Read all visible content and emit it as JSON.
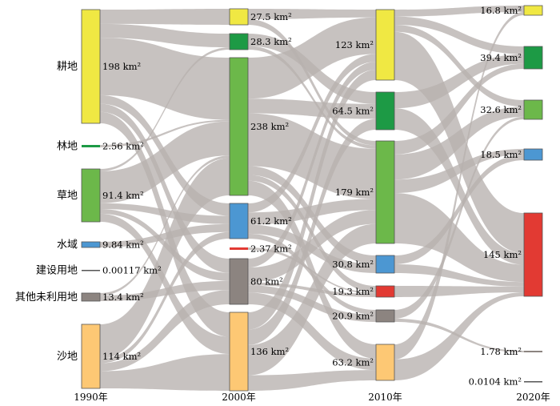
{
  "chart_data": {
    "type": "sankey",
    "unit": "km²",
    "colors": {
      "cropland": "#f0e843",
      "forest": "#1d9a45",
      "grassland": "#6cb84a",
      "water": "#4c97d2",
      "construction": "#e23a33",
      "unused": "#8c8480",
      "sand": "#fdc874",
      "flow": "#b7b1ae"
    },
    "years": [
      {
        "label": "1990年",
        "nodes": [
          {
            "id": "1990-cropland",
            "name": "耕地",
            "value": 198,
            "label": "198 km²",
            "color": "cropland"
          },
          {
            "id": "1990-forest",
            "name": "林地",
            "value": 2.56,
            "label": "2.56 km²",
            "color": "forest"
          },
          {
            "id": "1990-grassland",
            "name": "草地",
            "value": 91.4,
            "label": "91.4 km²",
            "color": "grassland"
          },
          {
            "id": "1990-water",
            "name": "水域",
            "value": 9.84,
            "label": "9.84 km²",
            "color": "water"
          },
          {
            "id": "1990-construction",
            "name": "建设用地",
            "value": 0.00117,
            "label": "0.00117 km²",
            "color": "construction"
          },
          {
            "id": "1990-unused",
            "name": "其他未利用地",
            "value": 13.4,
            "label": "13.4 km²",
            "color": "unused"
          },
          {
            "id": "1990-sand",
            "name": "沙地",
            "value": 114,
            "label": "114 km²",
            "color": "sand"
          }
        ]
      },
      {
        "label": "2000年",
        "nodes": [
          {
            "id": "2000-cropland",
            "value": 27.5,
            "label": "27.5 km²",
            "color": "cropland"
          },
          {
            "id": "2000-forest",
            "value": 28.3,
            "label": "28.3 km²",
            "color": "forest"
          },
          {
            "id": "2000-grassland",
            "value": 238,
            "label": "238 km²",
            "color": "grassland"
          },
          {
            "id": "2000-water",
            "value": 61.2,
            "label": "61.2 km²",
            "color": "water"
          },
          {
            "id": "2000-construction",
            "value": 2.37,
            "label": "2.37 km²",
            "color": "construction"
          },
          {
            "id": "2000-unused",
            "value": 80,
            "label": "80 km²",
            "color": "unused"
          },
          {
            "id": "2000-sand",
            "value": 136,
            "label": "136 km²",
            "color": "sand"
          }
        ]
      },
      {
        "label": "2010年",
        "nodes": [
          {
            "id": "2010-cropland",
            "value": 123,
            "label": "123 km²",
            "color": "cropland"
          },
          {
            "id": "2010-forest",
            "value": 64.5,
            "label": "64.5 km²",
            "color": "forest"
          },
          {
            "id": "2010-grassland",
            "value": 179,
            "label": "179 km²",
            "color": "grassland"
          },
          {
            "id": "2010-water",
            "value": 30.8,
            "label": "30.8 km²",
            "color": "water"
          },
          {
            "id": "2010-construction",
            "value": 19.3,
            "label": "19.3 km²",
            "color": "construction"
          },
          {
            "id": "2010-unused",
            "value": 20.9,
            "label": "20.9 km²",
            "color": "unused"
          },
          {
            "id": "2010-sand",
            "value": 63.2,
            "label": "63.2 km²",
            "color": "sand"
          }
        ]
      },
      {
        "label": "2020年",
        "nodes": [
          {
            "id": "2020-cropland",
            "value": 16.8,
            "label": "16.8 km²",
            "color": "cropland"
          },
          {
            "id": "2020-forest",
            "value": 39.4,
            "label": "39.4 km²",
            "color": "forest"
          },
          {
            "id": "2020-grassland",
            "value": 32.6,
            "label": "32.6 km²",
            "color": "grassland"
          },
          {
            "id": "2020-water",
            "value": 18.5,
            "label": "18.5 km²",
            "color": "water"
          },
          {
            "id": "2020-construction",
            "value": 145,
            "label": "145 km²",
            "color": "construction"
          },
          {
            "id": "2020-unused",
            "value": 1.78,
            "label": "1.78 km²",
            "color": "unused"
          },
          {
            "id": "2020-sand",
            "value": 0.0104,
            "label": "0.0104 km²",
            "color": "sand"
          }
        ]
      }
    ],
    "flows": [
      {
        "from": "1990-cropland",
        "to": "2000-cropland",
        "value": 25
      },
      {
        "from": "1990-cropland",
        "to": "2000-forest",
        "value": 24
      },
      {
        "from": "1990-cropland",
        "to": "2000-grassland",
        "value": 100
      },
      {
        "from": "1990-cropland",
        "to": "2000-water",
        "value": 15
      },
      {
        "from": "1990-cropland",
        "to": "2000-unused",
        "value": 14
      },
      {
        "from": "1990-cropland",
        "to": "2000-sand",
        "value": 20
      },
      {
        "from": "1990-forest",
        "to": "2000-grassland",
        "value": 2.5
      },
      {
        "from": "1990-grassland",
        "to": "2000-forest",
        "value": 4
      },
      {
        "from": "1990-grassland",
        "to": "2000-grassland",
        "value": 55
      },
      {
        "from": "1990-grassland",
        "to": "2000-water",
        "value": 10
      },
      {
        "from": "1990-grassland",
        "to": "2000-unused",
        "value": 8
      },
      {
        "from": "1990-grassland",
        "to": "2000-sand",
        "value": 14
      },
      {
        "from": "1990-water",
        "to": "2000-water",
        "value": 9.5
      },
      {
        "from": "1990-unused",
        "to": "2000-grassland",
        "value": 4
      },
      {
        "from": "1990-unused",
        "to": "2000-unused",
        "value": 9
      },
      {
        "from": "1990-sand",
        "to": "2000-grassland",
        "value": 60
      },
      {
        "from": "1990-sand",
        "to": "2000-water",
        "value": 8
      },
      {
        "from": "1990-sand",
        "to": "2000-unused",
        "value": 14
      },
      {
        "from": "1990-sand",
        "to": "2000-sand",
        "value": 30
      },
      {
        "from": "2000-cropland",
        "to": "2010-cropland",
        "value": 15
      },
      {
        "from": "2000-cropland",
        "to": "2010-grassland",
        "value": 8
      },
      {
        "from": "2000-forest",
        "to": "2010-forest",
        "value": 20
      },
      {
        "from": "2000-forest",
        "to": "2010-grassland",
        "value": 6
      },
      {
        "from": "2000-grassland",
        "to": "2010-cropland",
        "value": 70
      },
      {
        "from": "2000-grassland",
        "to": "2010-forest",
        "value": 25
      },
      {
        "from": "2000-grassland",
        "to": "2010-grassland",
        "value": 90
      },
      {
        "from": "2000-grassland",
        "to": "2010-water",
        "value": 15
      },
      {
        "from": "2000-grassland",
        "to": "2010-construction",
        "value": 10
      },
      {
        "from": "2000-grassland",
        "to": "2010-sand",
        "value": 25
      },
      {
        "from": "2000-water",
        "to": "2010-cropland",
        "value": 15
      },
      {
        "from": "2000-water",
        "to": "2010-grassland",
        "value": 20
      },
      {
        "from": "2000-water",
        "to": "2010-water",
        "value": 15
      },
      {
        "from": "2000-water",
        "to": "2010-unused",
        "value": 8
      },
      {
        "from": "2000-construction",
        "to": "2010-construction",
        "value": 2
      },
      {
        "from": "2000-unused",
        "to": "2010-cropland",
        "value": 15
      },
      {
        "from": "2000-unused",
        "to": "2010-grassland",
        "value": 25
      },
      {
        "from": "2000-unused",
        "to": "2010-construction",
        "value": 5
      },
      {
        "from": "2000-unused",
        "to": "2010-unused",
        "value": 12
      },
      {
        "from": "2000-unused",
        "to": "2010-sand",
        "value": 20
      },
      {
        "from": "2000-sand",
        "to": "2010-cropland",
        "value": 20
      },
      {
        "from": "2000-sand",
        "to": "2010-forest",
        "value": 18
      },
      {
        "from": "2000-sand",
        "to": "2010-grassland",
        "value": 35
      },
      {
        "from": "2000-sand",
        "to": "2010-sand",
        "value": 18
      },
      {
        "from": "2010-cropland",
        "to": "2020-cropland",
        "value": 10
      },
      {
        "from": "2010-cropland",
        "to": "2020-forest",
        "value": 12
      },
      {
        "from": "2010-cropland",
        "to": "2020-grassland",
        "value": 10
      },
      {
        "from": "2010-cropland",
        "to": "2020-construction",
        "value": 70
      },
      {
        "from": "2010-forest",
        "to": "2020-forest",
        "value": 15
      },
      {
        "from": "2010-forest",
        "to": "2020-construction",
        "value": 20
      },
      {
        "from": "2010-grassland",
        "to": "2020-forest",
        "value": 8
      },
      {
        "from": "2010-grassland",
        "to": "2020-grassland",
        "value": 15
      },
      {
        "from": "2010-grassland",
        "to": "2020-water",
        "value": 8
      },
      {
        "from": "2010-grassland",
        "to": "2020-construction",
        "value": 30
      },
      {
        "from": "2010-water",
        "to": "2020-water",
        "value": 8
      },
      {
        "from": "2010-water",
        "to": "2020-construction",
        "value": 8
      },
      {
        "from": "2010-construction",
        "to": "2020-construction",
        "value": 10
      },
      {
        "from": "2010-unused",
        "to": "2020-grassland",
        "value": 4
      },
      {
        "from": "2010-unused",
        "to": "2020-unused",
        "value": 1.5
      },
      {
        "from": "2010-sand",
        "to": "2020-cropland",
        "value": 5
      },
      {
        "from": "2010-sand",
        "to": "2020-construction",
        "value": 7
      }
    ]
  }
}
